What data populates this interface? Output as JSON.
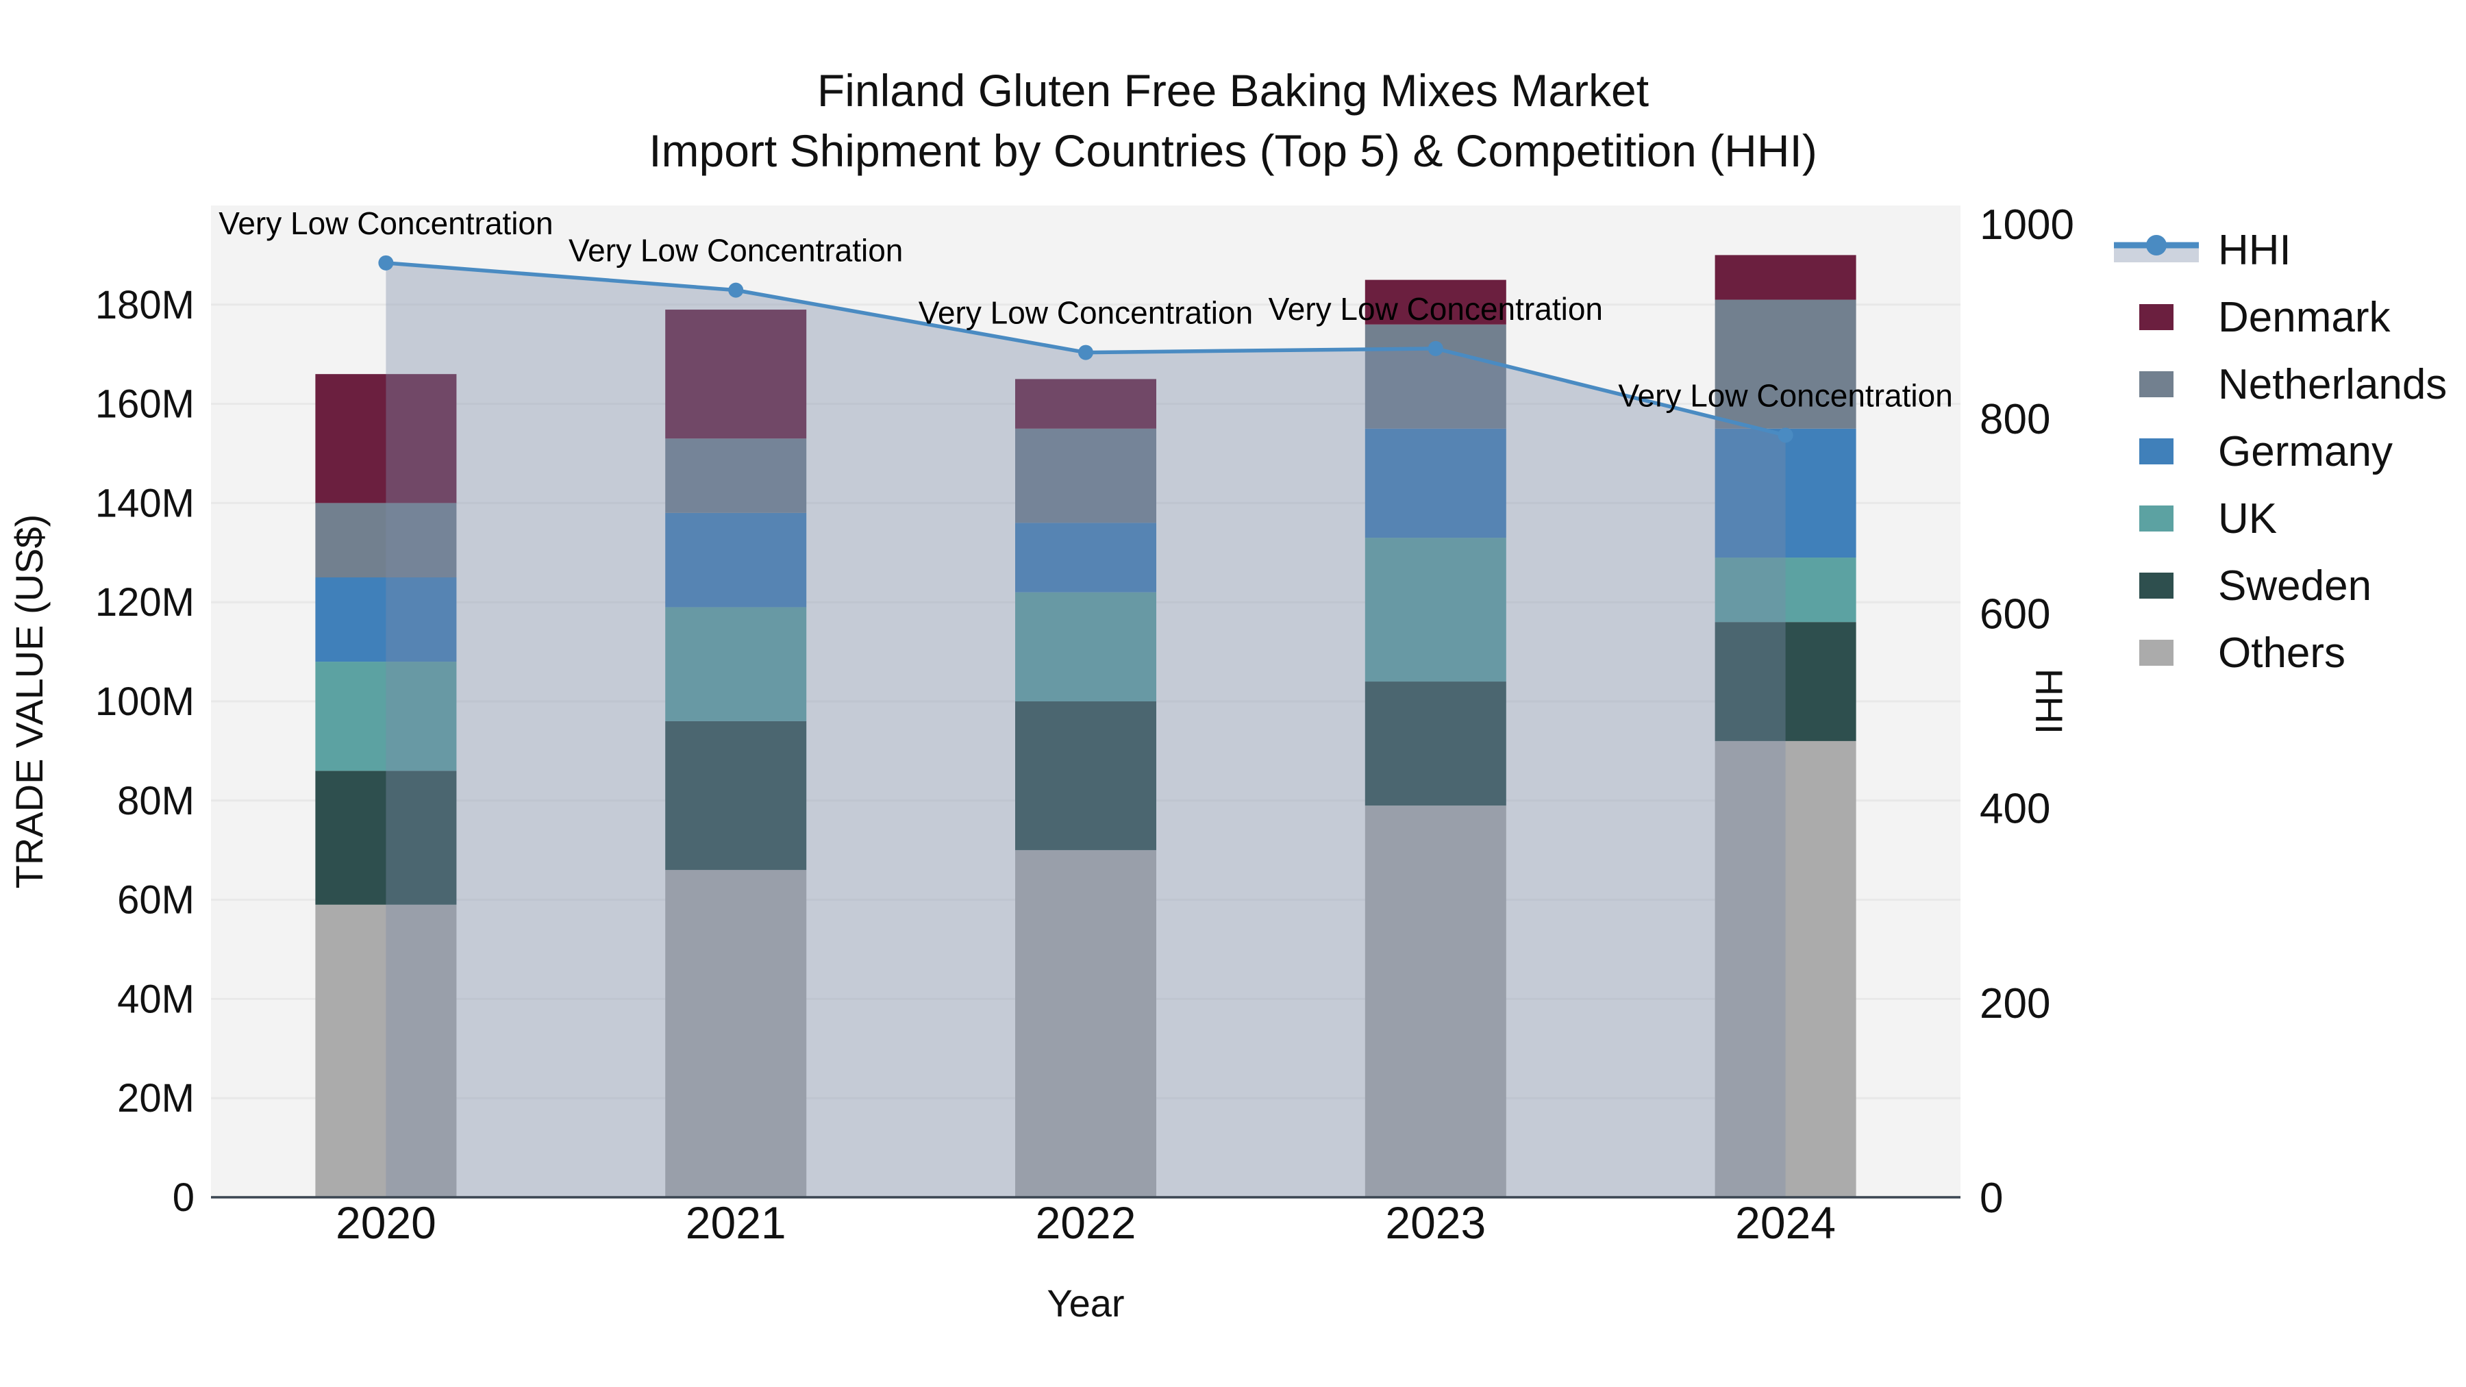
{
  "title": {
    "line1": "Finland Gluten Free Baking Mixes Market",
    "line2": "Import Shipment by Countries (Top 5) & Competition (HHI)"
  },
  "colors": {
    "hhi_line": "#4a8bc2",
    "hhi_area": "rgba(123,140,168,0.38)",
    "plot_background": "#f3f3f3",
    "gridline": "#e8e8e8",
    "axis_line": "#3b4652",
    "text": "#111111"
  },
  "chart_data": {
    "type": "bar",
    "subtype": "stacked-bars-with-line-overlay",
    "title": "Finland Gluten Free Baking Mixes Market — Import Shipment by Countries (Top 5) & Competition (HHI)",
    "categories": [
      "2020",
      "2021",
      "2022",
      "2023",
      "2024"
    ],
    "xlabel": "Year",
    "ylabel": "TRADE VALUE (US$)",
    "y2label": "HHI",
    "unit": "million US$",
    "grid": true,
    "legend_position": "right",
    "stack_order_bottom_to_top": [
      "Others",
      "Sweden",
      "UK",
      "Germany",
      "Netherlands",
      "Denmark"
    ],
    "series": [
      {
        "name": "Others",
        "color": "#ababab",
        "values": [
          59,
          66,
          70,
          79,
          92
        ]
      },
      {
        "name": "Sweden",
        "color": "#2e4f4e",
        "values": [
          27,
          30,
          30,
          25,
          24
        ]
      },
      {
        "name": "UK",
        "color": "#5ca2a2",
        "values": [
          22,
          23,
          22,
          29,
          13
        ]
      },
      {
        "name": "Germany",
        "color": "#4080ba",
        "values": [
          17,
          19,
          14,
          22,
          26
        ]
      },
      {
        "name": "Netherlands",
        "color": "#72808f",
        "values": [
          15,
          15,
          19,
          21,
          26
        ]
      },
      {
        "name": "Denmark",
        "color": "#6b1f3f",
        "values": [
          26,
          26,
          10,
          9,
          9
        ]
      }
    ],
    "bar_totals": [
      166,
      179,
      165,
      185,
      190
    ],
    "line_series": {
      "name": "HHI",
      "color": "#4a8bc2",
      "axis": "right",
      "values": [
        960,
        932,
        868,
        872,
        783
      ],
      "area_fill": "rgba(123,140,168,0.38)"
    },
    "annotations": [
      {
        "category": "2020",
        "text": "Very Low Concentration"
      },
      {
        "category": "2021",
        "text": "Very Low Concentration"
      },
      {
        "category": "2022",
        "text": "Very Low Concentration"
      },
      {
        "category": "2023",
        "text": "Very Low Concentration"
      },
      {
        "category": "2024",
        "text": "Very Low Concentration"
      }
    ],
    "y_axis": {
      "title": "TRADE VALUE (US$)",
      "range_millions": [
        0,
        200
      ],
      "tick_labels": [
        "0",
        "20M",
        "40M",
        "60M",
        "80M",
        "100M",
        "120M",
        "140M",
        "160M",
        "180M"
      ],
      "tick_values": [
        0,
        20,
        40,
        60,
        80,
        100,
        120,
        140,
        160,
        180
      ]
    },
    "y2_axis": {
      "title": "HHI",
      "range": [
        0,
        1000
      ],
      "tick_labels": [
        "0",
        "200",
        "400",
        "600",
        "800",
        "1000"
      ],
      "tick_values": [
        0,
        200,
        400,
        600,
        800,
        1000
      ]
    },
    "legend": [
      {
        "label": "HHI",
        "swatch": "line",
        "color": "#4a8bc2"
      },
      {
        "label": "Denmark",
        "swatch": "box",
        "color": "#6b1f3f"
      },
      {
        "label": "Netherlands",
        "swatch": "box",
        "color": "#72808f"
      },
      {
        "label": "Germany",
        "swatch": "box",
        "color": "#4080ba"
      },
      {
        "label": "UK",
        "swatch": "box",
        "color": "#5ca2a2"
      },
      {
        "label": "Sweden",
        "swatch": "box",
        "color": "#2e4f4e"
      },
      {
        "label": "Others",
        "swatch": "box",
        "color": "#ababab"
      }
    ]
  }
}
